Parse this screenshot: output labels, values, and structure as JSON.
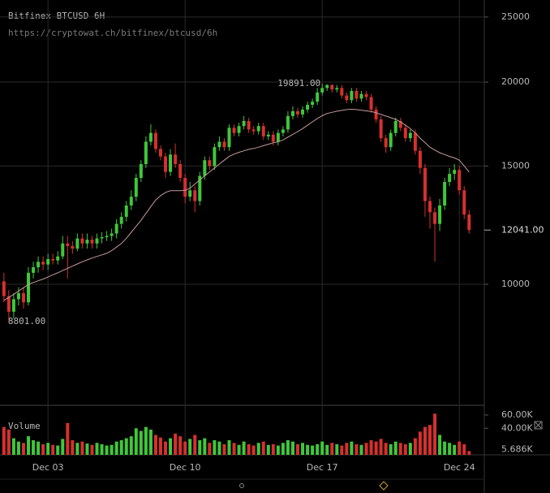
{
  "chart_data": {
    "type": "candlestick",
    "title": "Bitfinex BTCUSD 6H",
    "subtitle": "https://cryptowat.ch/bitfinex/btcusd/6h",
    "log_scale": true,
    "grid": true,
    "color_up": "#3fc83a",
    "color_down": "#d8302c",
    "ylim": [
      6640,
      26500
    ],
    "yticks": [
      10000,
      15000,
      20000,
      25000
    ],
    "xlim": [
      -0.8,
      98.1
    ],
    "xticks": [
      {
        "value": 9,
        "label": "Dec 03"
      },
      {
        "value": 37,
        "label": "Dec 10"
      },
      {
        "value": 65,
        "label": "Dec 17"
      },
      {
        "value": 93,
        "label": "Dec 24"
      }
    ],
    "open": [
      10100,
      9600,
      9100,
      9500,
      9700,
      9400,
      10400,
      10600,
      10800,
      10700,
      10900,
      10850,
      11000,
      11500,
      11400,
      11300,
      11700,
      11500,
      11650,
      11500,
      11700,
      11750,
      11800,
      11900,
      12300,
      12600,
      13100,
      13500,
      14400,
      15100,
      16300,
      16800,
      15900,
      15500,
      14700,
      15600,
      15100,
      14400,
      13500,
      13800,
      13300,
      14500,
      15300,
      15000,
      16000,
      16300,
      16000,
      17100,
      16800,
      17200,
      17500,
      17000,
      16900,
      17200,
      16600,
      16700,
      16300,
      16800,
      17000,
      17800,
      18100,
      17900,
      18200,
      18500,
      18700,
      19300,
      19600,
      19800,
      19500,
      19600,
      19100,
      18800,
      19400,
      18900,
      19200,
      19000,
      18200,
      17600,
      16500,
      16000,
      16800,
      17500,
      17100,
      16500,
      16800,
      15800,
      14900,
      13300,
      12800,
      12300,
      13100,
      14200,
      14600,
      14800,
      13800,
      12700
    ],
    "high": [
      10400,
      9800,
      9700,
      9900,
      9900,
      10600,
      10800,
      11000,
      11000,
      11100,
      11100,
      11200,
      11800,
      11800,
      11600,
      11900,
      11900,
      11900,
      11800,
      11900,
      11950,
      12000,
      12100,
      12500,
      12800,
      13300,
      13800,
      14600,
      15300,
      16600,
      17300,
      17000,
      16100,
      15700,
      15900,
      16200,
      15300,
      14600,
      14200,
      14000,
      14700,
      15500,
      15500,
      16200,
      16600,
      16500,
      17300,
      17300,
      17400,
      17800,
      17700,
      17200,
      17400,
      17400,
      16900,
      16900,
      17000,
      17200,
      18100,
      18400,
      18300,
      18400,
      18700,
      18900,
      19600,
      19891,
      19850,
      19850,
      19800,
      19800,
      19300,
      19600,
      19600,
      19400,
      19400,
      19200,
      18400,
      17800,
      16700,
      17000,
      17700,
      17700,
      17300,
      17000,
      17000,
      16000,
      15100,
      13500,
      13000,
      13400,
      14400,
      14900,
      15100,
      15000,
      14000,
      12900
    ],
    "low": [
      9400,
      8801,
      8900,
      9300,
      9200,
      9300,
      10200,
      10400,
      10500,
      10500,
      10700,
      10700,
      10900,
      10200,
      11100,
      11200,
      11300,
      11300,
      11300,
      11300,
      11500,
      11600,
      11600,
      11700,
      12100,
      12400,
      12900,
      13300,
      14200,
      14900,
      16100,
      15700,
      15300,
      14400,
      14500,
      14900,
      14200,
      13200,
      13300,
      12800,
      13100,
      14300,
      14800,
      14800,
      15800,
      15800,
      15800,
      16600,
      16600,
      17000,
      16800,
      16700,
      16700,
      16400,
      16400,
      16100,
      16100,
      16600,
      16800,
      17600,
      17700,
      17700,
      18000,
      18300,
      18500,
      19100,
      19400,
      19300,
      19300,
      18900,
      18600,
      18600,
      18700,
      18700,
      18800,
      18000,
      17400,
      16300,
      15700,
      15800,
      16600,
      16900,
      16300,
      16300,
      15600,
      14600,
      12600,
      12100,
      10800,
      12000,
      12900,
      14000,
      14300,
      13600,
      12500,
      11900
    ],
    "close": [
      9600,
      9100,
      9500,
      9700,
      9400,
      10400,
      10600,
      10800,
      10700,
      10900,
      10850,
      11000,
      11500,
      11400,
      11300,
      11700,
      11500,
      11650,
      11500,
      11700,
      11750,
      11800,
      11900,
      12300,
      12600,
      13100,
      13500,
      14400,
      15100,
      16300,
      16800,
      15900,
      15500,
      14700,
      15600,
      15100,
      14400,
      13500,
      13800,
      13300,
      14500,
      15300,
      15000,
      16000,
      16300,
      16000,
      17100,
      16800,
      17200,
      17500,
      17000,
      16900,
      17200,
      16600,
      16700,
      16300,
      16800,
      17000,
      17800,
      18100,
      17900,
      18200,
      18500,
      18700,
      19300,
      19600,
      19800,
      19500,
      19600,
      19100,
      18800,
      19400,
      18900,
      19200,
      19000,
      18200,
      17600,
      16500,
      16000,
      16800,
      17500,
      17100,
      16500,
      16800,
      15800,
      14900,
      13300,
      12800,
      12300,
      13100,
      14200,
      14600,
      14800,
      13800,
      12700,
      12041
    ],
    "moving_average": {
      "color": "#c49a9e",
      "values": [
        9460,
        9560,
        9660,
        9770,
        9880,
        9990,
        10060,
        10120,
        10180,
        10250,
        10330,
        10400,
        10480,
        10560,
        10640,
        10720,
        10800,
        10870,
        10940,
        11000,
        11060,
        11120,
        11220,
        11360,
        11500,
        11700,
        11950,
        12200,
        12450,
        12750,
        13050,
        13350,
        13550,
        13700,
        13780,
        13780,
        13780,
        13800,
        13900,
        14100,
        14300,
        14500,
        14700,
        14900,
        15100,
        15300,
        15500,
        15620,
        15720,
        15800,
        15880,
        15930,
        16000,
        16080,
        16160,
        16240,
        16290,
        16400,
        16560,
        16720,
        16880,
        17050,
        17250,
        17450,
        17650,
        17820,
        17960,
        18030,
        18100,
        18150,
        18200,
        18220,
        18200,
        18160,
        18120,
        18080,
        18000,
        17900,
        17800,
        17700,
        17600,
        17450,
        17250,
        17050,
        16800,
        16500,
        16250,
        16000,
        15840,
        15700,
        15600,
        15500,
        15420,
        15300,
        15000,
        14690
      ]
    },
    "price_labels": [
      {
        "value": 19891,
        "label": "19891.00"
      },
      {
        "value": 8801,
        "label": "8801.00"
      },
      {
        "value": 12041,
        "label": "12041.00"
      }
    ],
    "volume": {
      "label": "Volume",
      "ylim": [
        0,
        73400
      ],
      "yticks": [
        {
          "value": 60000,
          "label": "60.00K"
        },
        {
          "value": 40000,
          "label": "40.00K"
        }
      ],
      "last_label": "5.686K",
      "values": [
        42000,
        38000,
        25000,
        20000,
        18000,
        28000,
        22000,
        20000,
        16000,
        18000,
        15000,
        14000,
        24000,
        48000,
        22000,
        18000,
        20000,
        17000,
        15000,
        18000,
        16000,
        14000,
        15000,
        20000,
        22000,
        25000,
        28000,
        40000,
        36000,
        42000,
        38000,
        30000,
        26000,
        20000,
        25000,
        32000,
        28000,
        20000,
        24000,
        30000,
        22000,
        25000,
        18000,
        22000,
        20000,
        16000,
        22000,
        18000,
        15000,
        20000,
        16000,
        14000,
        18000,
        20000,
        15000,
        16000,
        14000,
        18000,
        22000,
        20000,
        16000,
        18000,
        15000,
        14000,
        16000,
        20000,
        15000,
        18000,
        16000,
        14000,
        18000,
        20000,
        16000,
        15000,
        18000,
        22000,
        20000,
        24000,
        18000,
        16000,
        20000,
        18000,
        16000,
        18000,
        25000,
        35000,
        42000,
        45000,
        62000,
        30000,
        20000,
        18000,
        15000,
        20000,
        16000,
        5686
      ]
    }
  }
}
